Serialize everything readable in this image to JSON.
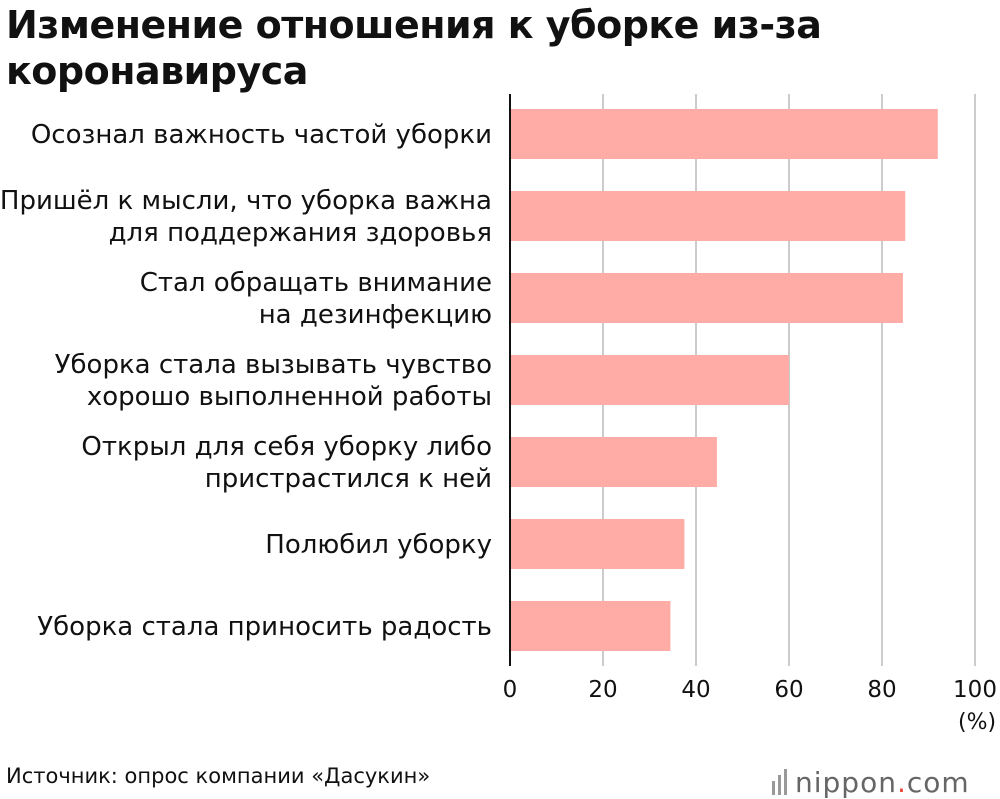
{
  "title": "Изменение отношения к уборке из-за коронавируса",
  "unit": "(%)",
  "source": "Источник: опрос компании «Дасукин»",
  "logo": {
    "name": "nippon",
    "dot": ".",
    "tld": "com",
    "accent": "#e94a3a"
  },
  "colors": {
    "bar": "#ffaba6",
    "grid": "#cccccc",
    "axis": "#111111"
  },
  "chart_data": {
    "type": "bar",
    "orientation": "horizontal",
    "categories": [
      [
        "Осознал важность частой уборки"
      ],
      [
        "Пришёл к мысли, что уборка важна",
        "для поддержания здоровья"
      ],
      [
        "Стал обращать внимание",
        "на дезинфекцию"
      ],
      [
        "Уборка стала вызывать чувство",
        "хорошо выполненной работы"
      ],
      [
        "Открыл для себя уборку либо",
        "пристрастился к ней"
      ],
      [
        "Полюбил уборку"
      ],
      [
        "Уборка стала приносить радость"
      ]
    ],
    "values": [
      92,
      85,
      84.5,
      60,
      44.5,
      37.5,
      34.5
    ],
    "xlim": [
      0,
      100
    ],
    "ticks": [
      0,
      20,
      40,
      60,
      80,
      100
    ],
    "grid": true
  }
}
